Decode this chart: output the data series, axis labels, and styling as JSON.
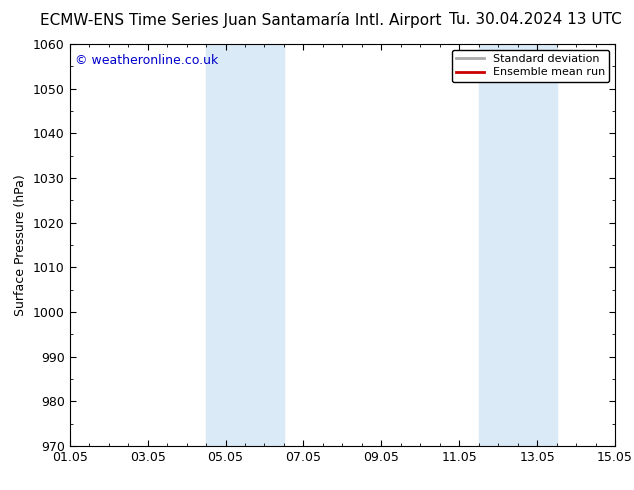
{
  "title_left": "ECMW-ENS Time Series Juan Santamaría Intl. Airport",
  "title_right": "Tu. 30.04.2024 13 UTC",
  "ylabel": "Surface Pressure (hPa)",
  "ylim": [
    970,
    1060
  ],
  "yticks": [
    970,
    980,
    990,
    1000,
    1010,
    1020,
    1030,
    1040,
    1050,
    1060
  ],
  "xlim_start": 0,
  "xlim_end": 14,
  "xtick_labels": [
    "01.05",
    "03.05",
    "05.05",
    "07.05",
    "09.05",
    "11.05",
    "13.05",
    "15.05"
  ],
  "xtick_positions": [
    0,
    2,
    4,
    6,
    8,
    10,
    12,
    14
  ],
  "shaded_bands": [
    {
      "xmin": 3.5,
      "xmax": 5.5,
      "color": "#daeaf6",
      "alpha": 1.0
    },
    {
      "xmin": 10.5,
      "xmax": 12.5,
      "color": "#daeaf6",
      "alpha": 1.0
    }
  ],
  "watermark_text": "© weatheronline.co.uk",
  "watermark_color": "#0000cc",
  "watermark_fontsize": 9,
  "legend_items": [
    "Standard deviation",
    "Ensemble mean run"
  ],
  "legend_colors": [
    "#aaaaaa",
    "#cc0000"
  ],
  "background_color": "#ffffff",
  "plot_bg_color": "#ffffff",
  "title_fontsize": 11,
  "axis_fontsize": 9,
  "tick_fontsize": 9
}
